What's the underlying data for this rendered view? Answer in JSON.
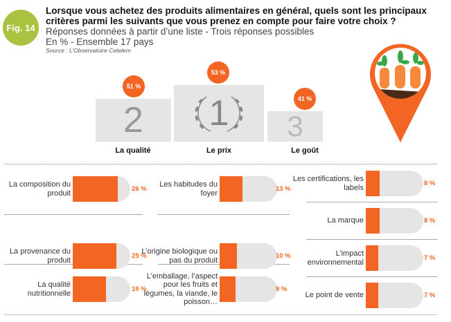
{
  "figure": {
    "badge": "Fig. 14",
    "title": "Lorsque vous achetez des produits alimentaires en général, quels sont les principaux critères parmi les suivants que vous prenez en compte pour faire votre choix ?",
    "subtitle1": "Réponses données à partir d’une liste - Trois réponses possibles",
    "subtitle2": "En % - Ensemble 17 pays",
    "source": "Source : L’Observatoire Cetelem"
  },
  "colors": {
    "accent": "#f26522",
    "badge": "#a9c23f",
    "track": "#e5e5e6"
  },
  "chart_data": [
    {
      "type": "bar",
      "style": "podium",
      "unit": "%",
      "categories": [
        "La qualité",
        "Le prix",
        "Le goût"
      ],
      "ranks": [
        "2",
        "1",
        "3"
      ],
      "values": [
        51,
        53,
        41
      ],
      "labels": [
        "51 %",
        "53 %",
        "41 %"
      ]
    },
    {
      "type": "bar",
      "orientation": "horizontal",
      "unit": "%",
      "categories": [
        "La composition du produit",
        "La provenance du produit",
        "La qualité nutritionnelle",
        "Les habitudes du foyer",
        "L’origine biologique ou pas du produit",
        "L’emballage, l’aspect pour les fruits et légumes, la viande, le poisson…",
        "Les certifications, les labels",
        "La marque",
        "L’impact environnemental",
        "Le point de vente"
      ],
      "values": [
        26,
        25,
        19,
        13,
        10,
        9,
        8,
        8,
        7,
        7
      ],
      "labels": [
        "26 %",
        "25 %",
        "19 %",
        "13 %",
        "10 %",
        "9 %",
        "8 %",
        "8 %",
        "7 %",
        "7 %"
      ]
    }
  ]
}
